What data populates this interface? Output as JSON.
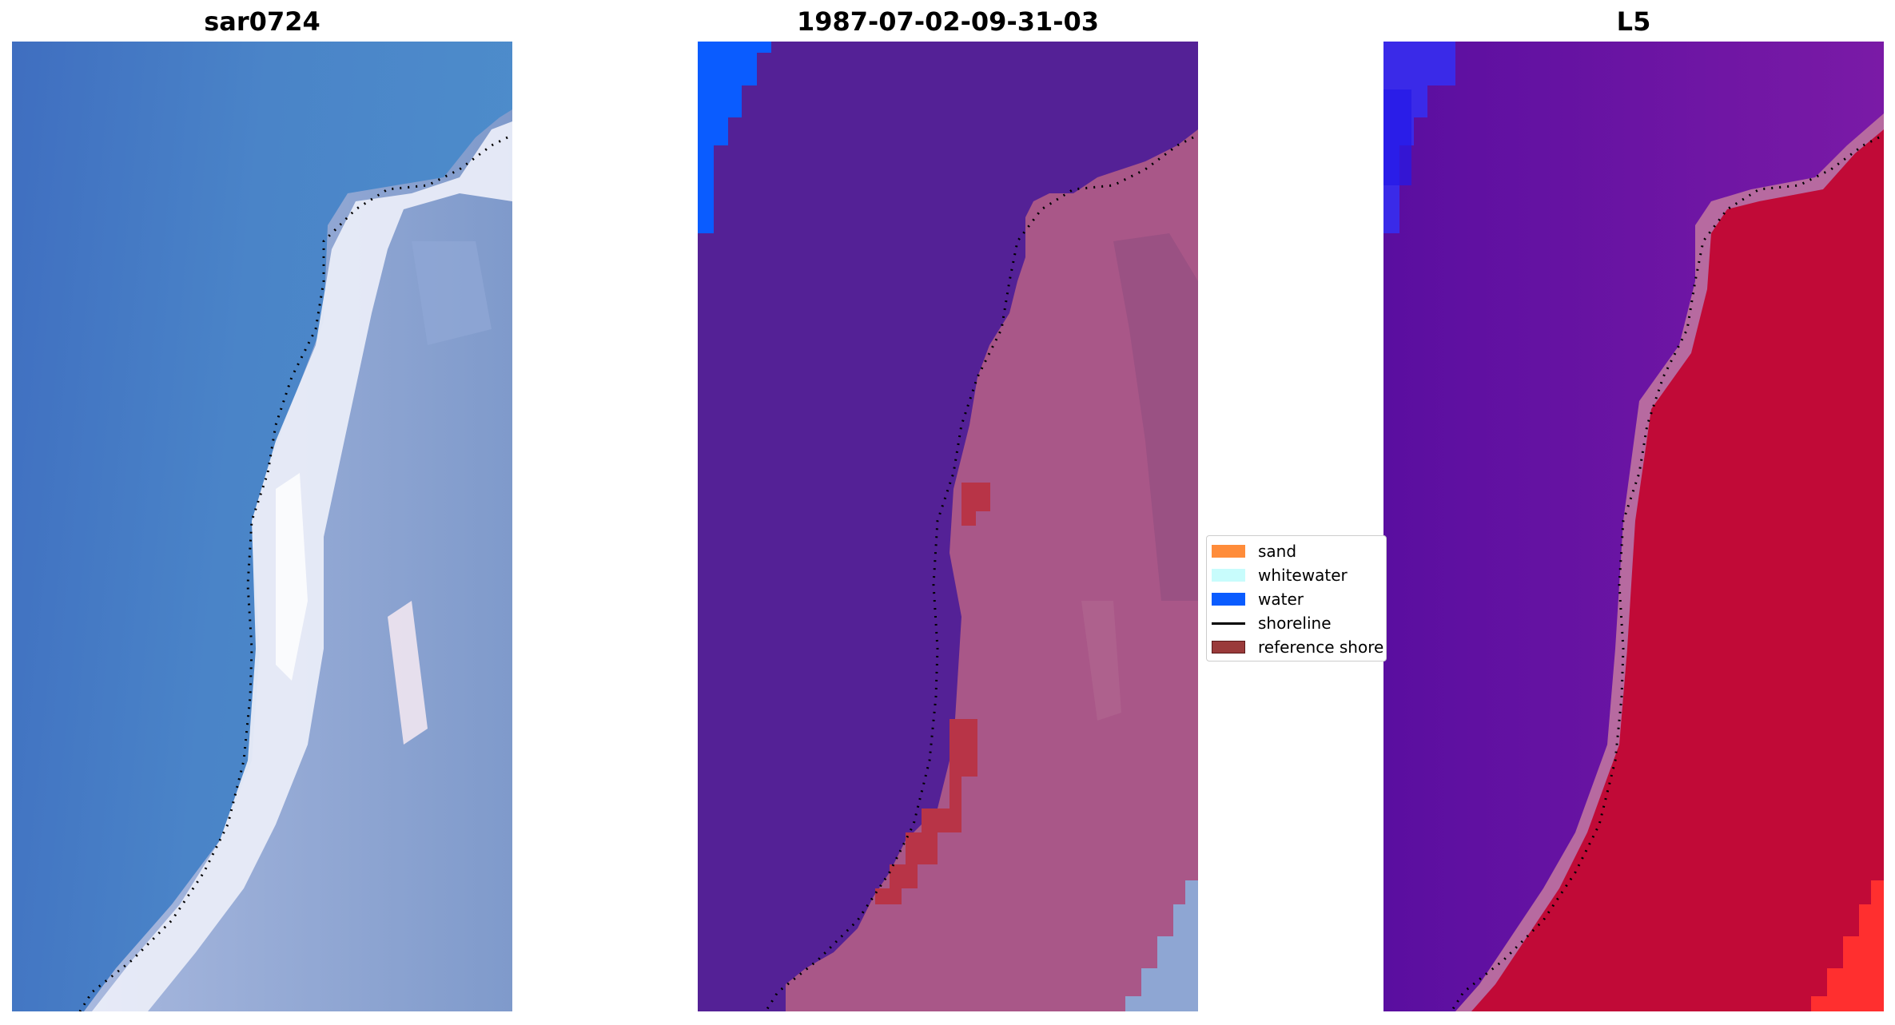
{
  "panels": [
    {
      "title": "sar0724"
    },
    {
      "title": "1987-07-02-09-31-03"
    },
    {
      "title": "L5"
    }
  ],
  "legend": {
    "items": [
      {
        "label": "sand",
        "color": "#ff8c3a",
        "kind": "patch"
      },
      {
        "label": "whitewater",
        "color": "#c8fcfc",
        "kind": "patch"
      },
      {
        "label": "water",
        "color": "#0a5cff",
        "kind": "patch"
      },
      {
        "label": "shoreline",
        "color": "#000000",
        "kind": "line"
      },
      {
        "label": "reference shore",
        "color": "#9a3a3a",
        "kind": "patch"
      }
    ]
  },
  "colors": {
    "rgb_water": "#4a82c6",
    "rgb_surf": "#eef0fa",
    "rgb_land": "#8aa4cf",
    "class_water_overlay": "#542196",
    "class_land_overlay": "#a95788",
    "class_water_top": "#0a5cff",
    "class_ref_shore": "#b83447",
    "class_inland_blue": "#8ea6d3",
    "l5_water": "#6a12a2",
    "l5_land": "#c10a37",
    "l5_blue": "#2c22ee",
    "l5_red_corner": "#ff2f2f",
    "l5_edge": "#b76aa0"
  }
}
